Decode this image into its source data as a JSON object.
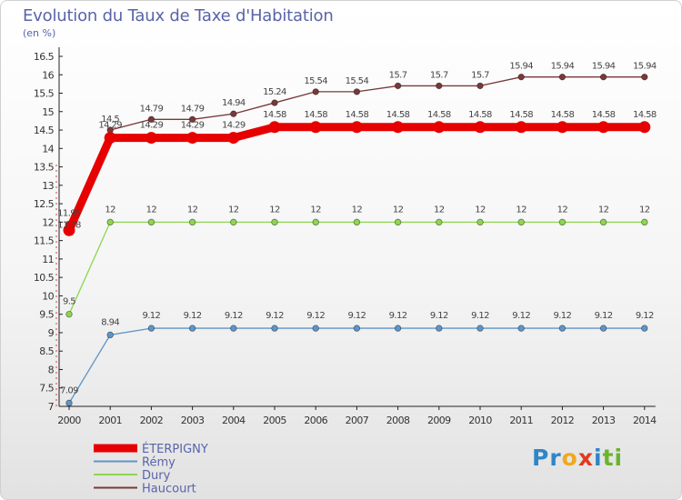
{
  "title": "Evolution du Taux de Taxe d'Habitation",
  "unit": "(en %)",
  "logo": {
    "text": "Proxiti",
    "letters": [
      {
        "ch": "P",
        "color": "#2f86c8"
      },
      {
        "ch": "r",
        "color": "#2f86c8"
      },
      {
        "ch": "o",
        "color": "#f2a81d"
      },
      {
        "ch": "x",
        "color": "#e33a1d"
      },
      {
        "ch": "i",
        "color": "#2f86c8"
      },
      {
        "ch": "t",
        "color": "#6ab42e"
      },
      {
        "ch": "i",
        "color": "#6ab42e"
      }
    ]
  },
  "chart_data": {
    "type": "line",
    "title": "Evolution du Taux de Taxe d'Habitation",
    "ylabel": "(en %)",
    "xlabel": "",
    "x": [
      "2000",
      "2001",
      "2002",
      "2003",
      "2004",
      "2005",
      "2006",
      "2007",
      "2008",
      "2009",
      "2010",
      "2011",
      "2012",
      "2013",
      "2014"
    ],
    "ylim": [
      7,
      16.5
    ],
    "yticks": [
      "7",
      "7.5",
      "8",
      "8.5",
      "9",
      "9.5",
      "10",
      "10.5",
      "11",
      "11.5",
      "12",
      "12.5",
      "13",
      "13.5",
      "14",
      "14.5",
      "15",
      "15.5",
      "16",
      "16.5"
    ],
    "grid": false,
    "legend_position": "bottom-left",
    "series": [
      {
        "name": "ÉTERPIGNY",
        "color": "#e60000",
        "bold": true,
        "values": [
          11.78,
          14.29,
          14.29,
          14.29,
          14.29,
          14.58,
          14.58,
          14.58,
          14.58,
          14.58,
          14.58,
          14.58,
          14.58,
          14.58,
          14.58
        ],
        "labels": [
          "11.78",
          "14.29",
          "14.29",
          "14.29",
          "14.29",
          "14.58",
          "14.58",
          "14.58",
          "14.58",
          "14.58",
          "14.58",
          "14.58",
          "14.58",
          "14.58",
          "14.58"
        ]
      },
      {
        "name": "Rémy",
        "color": "#5e95c8",
        "bold": false,
        "values": [
          7.09,
          8.94,
          9.12,
          9.12,
          9.12,
          9.12,
          9.12,
          9.12,
          9.12,
          9.12,
          9.12,
          9.12,
          9.12,
          9.12,
          9.12
        ],
        "labels": [
          "7.09",
          "8.94",
          "9.12",
          "9.12",
          "9.12",
          "9.12",
          "9.12",
          "9.12",
          "9.12",
          "9.12",
          "9.12",
          "9.12",
          "9.12",
          "9.12",
          "9.12"
        ]
      },
      {
        "name": "Dury",
        "color": "#8ed650",
        "bold": false,
        "values": [
          9.5,
          12,
          12,
          12,
          12,
          12,
          12,
          12,
          12,
          12,
          12,
          12,
          12,
          12,
          12
        ],
        "labels": [
          "9.5",
          "12",
          "12",
          "12",
          "12",
          "12",
          "12",
          "12",
          "12",
          "12",
          "12",
          "12",
          "12",
          "12",
          "12"
        ]
      },
      {
        "name": "Haucourt",
        "color": "#7a3838",
        "bold": false,
        "values": [
          11.95,
          14.5,
          14.79,
          14.79,
          14.94,
          15.24,
          15.54,
          15.54,
          15.7,
          15.7,
          15.7,
          15.94,
          15.94,
          15.94,
          15.94
        ],
        "labels": [
          "11.95",
          "14.5",
          "14.79",
          "14.79",
          "14.94",
          "15.24",
          "15.54",
          "15.54",
          "15.7",
          "15.7",
          "15.7",
          "15.94",
          "15.94",
          "15.94",
          "15.94"
        ]
      }
    ]
  }
}
